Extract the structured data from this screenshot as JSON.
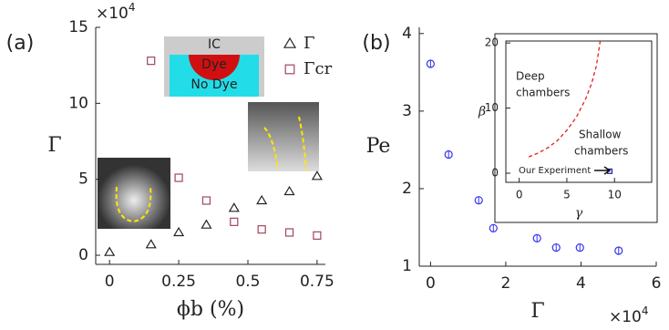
{
  "chart_data": [
    {
      "type": "scatter",
      "panel_label": "(a)",
      "x_label": "ϕb (%)",
      "y_label": "Γ",
      "y_multiplier": {
        "base": "×10",
        "exponent": "4"
      },
      "xlim": [
        -0.05,
        0.78
      ],
      "xticks": [
        0,
        0.25,
        0.5,
        0.75
      ],
      "ylim": [
        -0.6,
        15
      ],
      "yticks": [
        0,
        5,
        10,
        15
      ],
      "annotations": [
        "IC",
        "Dye",
        "No Dye"
      ],
      "series": [
        {
          "name": "Γ",
          "color": "#222222",
          "marker": "triangle",
          "x": [
            0,
            0.15,
            0.25,
            0.35,
            0.45,
            0.55,
            0.65,
            0.75
          ],
          "values": [
            0.2,
            0.7,
            1.5,
            2.0,
            3.1,
            3.6,
            4.2,
            5.2
          ]
        },
        {
          "name": "Γcr",
          "color": "#a0465a",
          "marker": "square",
          "x": [
            0.15,
            0.25,
            0.35,
            0.45,
            0.55,
            0.65,
            0.75
          ],
          "values": [
            12.8,
            5.1,
            3.6,
            2.2,
            1.7,
            1.5,
            1.3
          ]
        }
      ]
    },
    {
      "type": "scatter",
      "panel_label": "(b)",
      "x_label": "Γ",
      "y_label": "Pe",
      "x_multiplier": {
        "base": "×10",
        "exponent": "4"
      },
      "xlim": [
        -0.3,
        6
      ],
      "xticks": [
        0,
        2,
        4,
        6
      ],
      "ylim": [
        1,
        4.08
      ],
      "yticks": [
        1,
        2,
        3,
        4
      ],
      "series": [
        {
          "color": "#3333ee",
          "marker": "circle",
          "x": [
            0,
            0.48,
            1.28,
            1.67,
            2.83,
            3.34,
            3.97,
            5.0
          ],
          "values": [
            3.61,
            2.44,
            1.85,
            1.49,
            1.36,
            1.24,
            1.24,
            1.2
          ]
        }
      ]
    },
    {
      "type": "line",
      "x_label": "γ",
      "y_label": "β",
      "xlim": [
        -1.4,
        13.9
      ],
      "xticks": [
        0,
        5,
        10
      ],
      "ylim": [
        -1.4,
        20.3
      ],
      "yticks": [
        0,
        10,
        20
      ],
      "annotations": [
        [
          "Deep",
          "chambers"
        ],
        [
          "Shallow",
          "chambers"
        ],
        [
          "Our Experiment"
        ]
      ],
      "series": [
        {
          "color": "#e02020",
          "line_style": "dashed",
          "x": [
            1,
            2,
            3,
            4,
            5,
            6,
            7,
            7.6,
            8.1,
            8.5
          ],
          "values": [
            2.5,
            3.1,
            3.9,
            5.0,
            6.6,
            8.6,
            11.5,
            13.8,
            16.5,
            20.3
          ]
        },
        {
          "color": "#1a1aaa",
          "marker": "square",
          "x": [
            9.5
          ],
          "values": [
            0.3
          ]
        }
      ]
    }
  ]
}
